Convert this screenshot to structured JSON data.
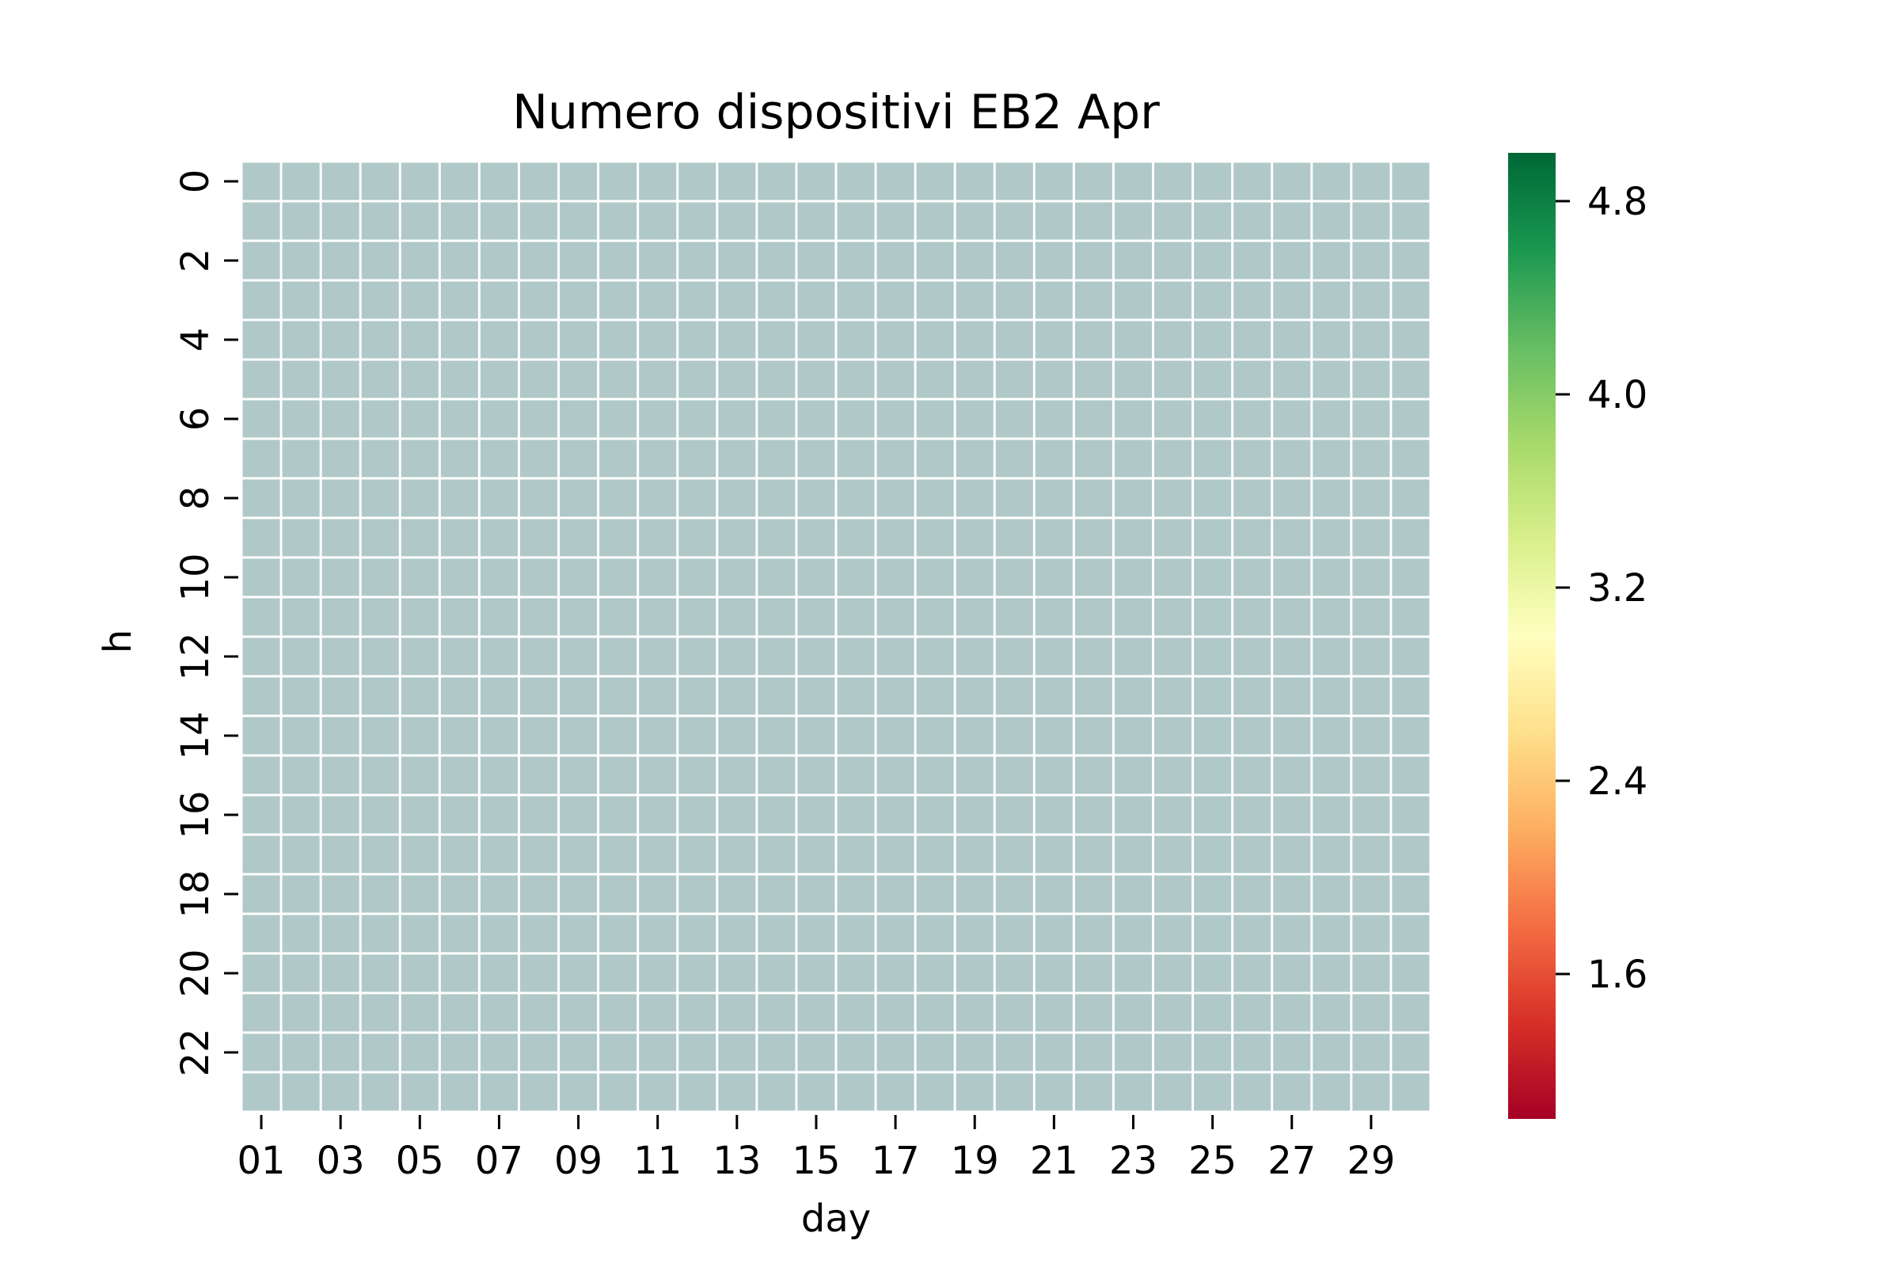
{
  "chart_data": {
    "type": "heatmap",
    "title": "Numero dispositivi EB2 Apr",
    "xlabel": "day",
    "ylabel": "h",
    "x_tick_labels": [
      "01",
      "03",
      "05",
      "07",
      "09",
      "11",
      "13",
      "15",
      "17",
      "19",
      "21",
      "23",
      "25",
      "27",
      "29"
    ],
    "y_tick_labels": [
      "0",
      "2",
      "4",
      "6",
      "8",
      "10",
      "12",
      "14",
      "16",
      "18",
      "20",
      "22"
    ],
    "columns": 30,
    "rows": 24,
    "cells": "all cells missing (no data); drawn in uniform grey-blue",
    "missing_color": "#b0c8c8",
    "grid_color": "#ffffff",
    "colorbar": {
      "colormap": "RdYlGn",
      "range": [
        1.0,
        5.0
      ],
      "ticks": [
        "1.6",
        "2.4",
        "3.2",
        "4.0",
        "4.8"
      ],
      "tick_values": [
        1.6,
        2.4,
        3.2,
        4.0,
        4.8
      ],
      "colors": [
        "#a50026",
        "#d73027",
        "#f46d43",
        "#fdae61",
        "#fee08b",
        "#ffffbf",
        "#d9ef8b",
        "#a6d96a",
        "#66bd63",
        "#1a9850",
        "#006837"
      ]
    }
  }
}
